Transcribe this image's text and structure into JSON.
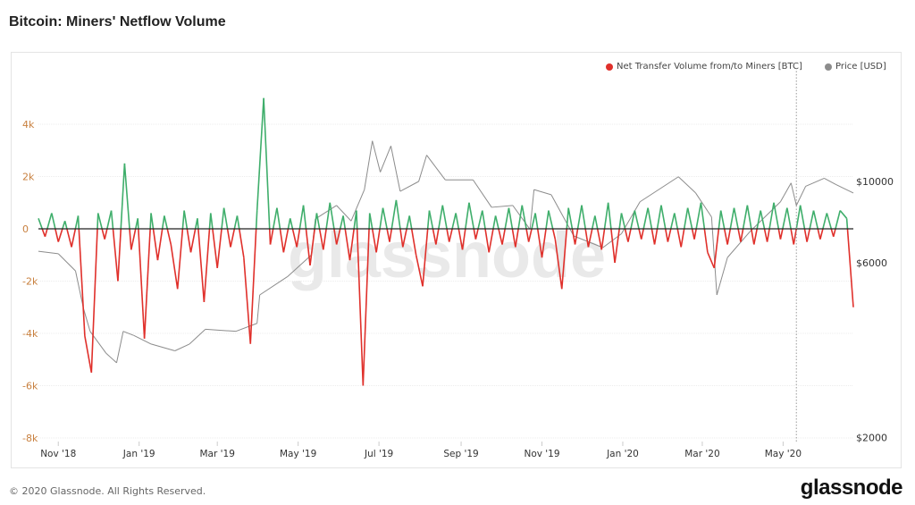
{
  "title": "Bitcoin: Miners' Netflow Volume",
  "footer": "© 2020 Glassnode. All Rights Reserved.",
  "logo": "glassnode",
  "watermark": "glassnode",
  "colors": {
    "netflow_positive": "#3fae6b",
    "netflow_negative": "#e0302b",
    "price": "#8c8c8c",
    "left_axis_labels": "#c8803f"
  },
  "chart_data": {
    "type": "line",
    "title": "Bitcoin: Miners' Netflow Volume",
    "legend_position": "top-right",
    "grid": true,
    "x_ticks": [
      {
        "date": "2018-11-01",
        "label": "Nov '18"
      },
      {
        "date": "2019-01-01",
        "label": "Jan '19"
      },
      {
        "date": "2019-03-01",
        "label": "Mar '19"
      },
      {
        "date": "2019-05-01",
        "label": "May '19"
      },
      {
        "date": "2019-07-01",
        "label": "Jul '19"
      },
      {
        "date": "2019-09-01",
        "label": "Sep '19"
      },
      {
        "date": "2019-11-01",
        "label": "Nov '19"
      },
      {
        "date": "2020-01-01",
        "label": "Jan '20"
      },
      {
        "date": "2020-03-01",
        "label": "Mar '20"
      },
      {
        "date": "2020-05-01",
        "label": "May '20"
      }
    ],
    "x_range": [
      "2018-10-17",
      "2020-06-23"
    ],
    "y_left": {
      "range": [
        -8000,
        5000
      ],
      "ticks": [
        {
          "v": 4000,
          "label": "4k"
        },
        {
          "v": 2000,
          "label": "2k"
        },
        {
          "v": 0,
          "label": "0"
        },
        {
          "v": -2000,
          "label": "-2k"
        },
        {
          "v": -4000,
          "label": "-4k"
        },
        {
          "v": -6000,
          "label": "-6k"
        },
        {
          "v": -8000,
          "label": "-8k"
        }
      ]
    },
    "y_right": {
      "scale": "log",
      "range": [
        2000,
        16000
      ],
      "ticks": [
        {
          "v": 10000,
          "label": "$10000"
        },
        {
          "v": 6000,
          "label": "$6000"
        },
        {
          "v": 2000,
          "label": "$2000"
        }
      ]
    },
    "marker_date": "2020-05-11",
    "series": [
      {
        "name": "Net Transfer Volume from/to Miners [BTC]",
        "axis": "left",
        "start_date": "2018-10-17",
        "step_days": 5,
        "values": [
          400,
          -300,
          600,
          -500,
          300,
          -700,
          500,
          -4100,
          -5500,
          600,
          -400,
          700,
          -2000,
          2500,
          -800,
          400,
          -4200,
          600,
          -1200,
          500,
          -600,
          -2300,
          700,
          -900,
          400,
          -2800,
          600,
          -1500,
          800,
          -700,
          500,
          -1100,
          -4400,
          700,
          5000,
          -600,
          800,
          -900,
          400,
          -700,
          900,
          -1400,
          600,
          -800,
          1000,
          -600,
          500,
          -1200,
          700,
          -6000,
          600,
          -900,
          800,
          -500,
          1100,
          -700,
          500,
          -1000,
          -2200,
          700,
          -600,
          900,
          -500,
          600,
          -800,
          1000,
          -400,
          700,
          -900,
          500,
          -600,
          800,
          -700,
          900,
          -500,
          600,
          -1100,
          700,
          -400,
          -2300,
          800,
          -600,
          900,
          -700,
          500,
          -800,
          1000,
          -1300,
          600,
          -500,
          700,
          -400,
          800,
          -600,
          900,
          -500,
          600,
          -700,
          800,
          -400,
          1000,
          -900,
          -1500,
          700,
          -600,
          800,
          -500,
          900,
          -600,
          700,
          -500,
          1000,
          -400,
          800,
          -600,
          900,
          -500,
          700,
          -400,
          600,
          -300,
          700,
          400,
          -3000
        ]
      },
      {
        "name": "Price [USD]",
        "axis": "right",
        "points": [
          [
            "2018-10-17",
            6450
          ],
          [
            "2018-11-01",
            6350
          ],
          [
            "2018-11-14",
            5700
          ],
          [
            "2018-11-20",
            4500
          ],
          [
            "2018-11-25",
            3900
          ],
          [
            "2018-12-07",
            3400
          ],
          [
            "2018-12-15",
            3200
          ],
          [
            "2018-12-20",
            3900
          ],
          [
            "2018-12-28",
            3800
          ],
          [
            "2019-01-10",
            3600
          ],
          [
            "2019-01-28",
            3450
          ],
          [
            "2019-02-08",
            3600
          ],
          [
            "2019-02-20",
            3950
          ],
          [
            "2019-03-15",
            3900
          ],
          [
            "2019-03-31",
            4100
          ],
          [
            "2019-04-02",
            4900
          ],
          [
            "2019-04-23",
            5500
          ],
          [
            "2019-05-11",
            6300
          ],
          [
            "2019-05-14",
            7900
          ],
          [
            "2019-05-30",
            8600
          ],
          [
            "2019-06-10",
            7800
          ],
          [
            "2019-06-20",
            9500
          ],
          [
            "2019-06-26",
            12900
          ],
          [
            "2019-07-02",
            10600
          ],
          [
            "2019-07-10",
            12500
          ],
          [
            "2019-07-17",
            9400
          ],
          [
            "2019-07-31",
            10000
          ],
          [
            "2019-08-06",
            11800
          ],
          [
            "2019-08-20",
            10100
          ],
          [
            "2019-09-10",
            10100
          ],
          [
            "2019-09-24",
            8500
          ],
          [
            "2019-10-10",
            8600
          ],
          [
            "2019-10-23",
            7400
          ],
          [
            "2019-10-26",
            9500
          ],
          [
            "2019-11-08",
            9200
          ],
          [
            "2019-11-25",
            7100
          ],
          [
            "2019-12-17",
            6600
          ],
          [
            "2019-12-31",
            7200
          ],
          [
            "2020-01-14",
            8800
          ],
          [
            "2020-02-12",
            10300
          ],
          [
            "2020-02-25",
            9300
          ],
          [
            "2020-03-08",
            8000
          ],
          [
            "2020-03-12",
            4900
          ],
          [
            "2020-03-20",
            6200
          ],
          [
            "2020-04-06",
            7300
          ],
          [
            "2020-04-29",
            8800
          ],
          [
            "2020-05-07",
            9900
          ],
          [
            "2020-05-11",
            8600
          ],
          [
            "2020-05-18",
            9700
          ],
          [
            "2020-06-01",
            10200
          ],
          [
            "2020-06-10",
            9800
          ],
          [
            "2020-06-23",
            9300
          ]
        ]
      }
    ]
  }
}
